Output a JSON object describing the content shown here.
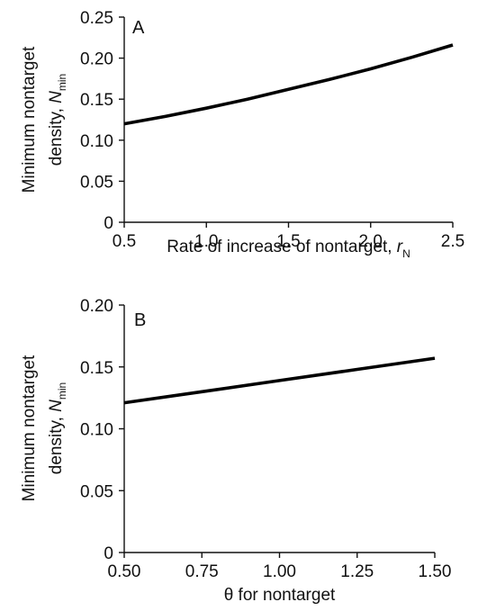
{
  "chart_data": [
    {
      "type": "line",
      "panel_label": "A",
      "xlabel": "Rate of increase of nontarget, r",
      "xlabel_parts": {
        "main": "Rate of increase of nontarget, ",
        "var": "r",
        "sub": "N"
      },
      "ylabel": "Minimum nontarget density, N min",
      "ylabel_parts": {
        "line1": "Minimum nontarget",
        "line2": "density, ",
        "var": "N",
        "sub": "min"
      },
      "xlim": [
        0.5,
        2.5
      ],
      "ylim": [
        0,
        0.25
      ],
      "xticks": [
        "0.5",
        "1.0",
        "1.5",
        "2.0",
        "2.5"
      ],
      "yticks": [
        "0",
        "0.05",
        "0.10",
        "0.15",
        "0.20",
        "0.25"
      ],
      "grid": false,
      "series": [
        {
          "x": [
            0.5,
            0.75,
            1.0,
            1.25,
            1.5,
            1.75,
            2.0,
            2.25,
            2.5
          ],
          "y": [
            0.12,
            0.129,
            0.139,
            0.15,
            0.162,
            0.174,
            0.187,
            0.201,
            0.216
          ]
        }
      ]
    },
    {
      "type": "line",
      "panel_label": "B",
      "xlabel": "θ for nontarget",
      "xlabel_parts": {
        "main": "θ for nontarget",
        "var": "",
        "sub": ""
      },
      "ylabel": "Minimum nontarget density, N min",
      "ylabel_parts": {
        "line1": "Minimum nontarget",
        "line2": "density, ",
        "var": "N",
        "sub": "min"
      },
      "xlim": [
        0.5,
        1.5
      ],
      "ylim": [
        0,
        0.2
      ],
      "xticks": [
        "0.50",
        "0.75",
        "1.00",
        "1.25",
        "1.50"
      ],
      "yticks": [
        "0",
        "0.05",
        "0.10",
        "0.15",
        "0.20"
      ],
      "grid": false,
      "series": [
        {
          "x": [
            0.5,
            0.75,
            1.0,
            1.25,
            1.5
          ],
          "y": [
            0.121,
            0.13,
            0.139,
            0.148,
            0.157
          ]
        }
      ]
    }
  ]
}
